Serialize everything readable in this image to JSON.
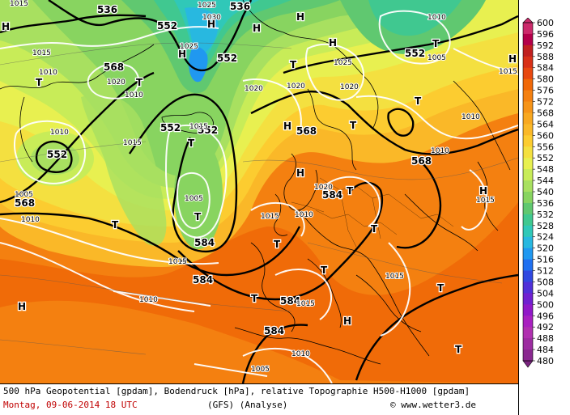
{
  "footer": {
    "title": "500 hPa Geopotential [gpdam], Bodendruck [hPa], relative Topographie H500-H1000 [gpdam]",
    "date": "Montag, 09-06-2014  18 UTC",
    "model": "(GFS)  (Analyse)",
    "credit": "© www.wetter3.de"
  },
  "scale": {
    "values": [
      "600",
      "596",
      "592",
      "588",
      "584",
      "580",
      "576",
      "572",
      "568",
      "564",
      "560",
      "556",
      "552",
      "548",
      "544",
      "540",
      "536",
      "532",
      "528",
      "524",
      "520",
      "516",
      "512",
      "508",
      "504",
      "500",
      "496",
      "492",
      "488",
      "484",
      "480"
    ],
    "colors": [
      "#cc2a6b",
      "#b3004a",
      "#c02020",
      "#d83018",
      "#e84810",
      "#f06808",
      "#f48010",
      "#f69418",
      "#f8a820",
      "#fab828",
      "#fccc30",
      "#f4e040",
      "#e8f050",
      "#c8ec58",
      "#a8e060",
      "#88d460",
      "#60c870",
      "#40c890",
      "#30c8b8",
      "#28b8e0",
      "#2098f0",
      "#2070f0",
      "#3048e0",
      "#5030d8",
      "#7020d0",
      "#9018c8",
      "#a820c0",
      "#b030b0",
      "#9c2ca0",
      "#8a2890",
      "#7a2480"
    ]
  },
  "map": {
    "geopotential_labels": [
      "536",
      "536",
      "552",
      "552",
      "552",
      "552",
      "552",
      "552",
      "568",
      "568",
      "568",
      "568",
      "584",
      "584",
      "584",
      "584"
    ],
    "pressure_labels": [
      "1015",
      "1015",
      "1010",
      "1020",
      "1010",
      "1025",
      "1030",
      "1025",
      "1025",
      "1020",
      "1010",
      "1005",
      "1015",
      "1010",
      "1010",
      "1010",
      "1005",
      "1005",
      "1010",
      "1015",
      "1015",
      "1015",
      "1015",
      "1010",
      "1020",
      "1010",
      "1020",
      "1015",
      "1015",
      "1015",
      "1020",
      "1010",
      "1005"
    ],
    "high_marker": "H",
    "low_marker": "T"
  }
}
